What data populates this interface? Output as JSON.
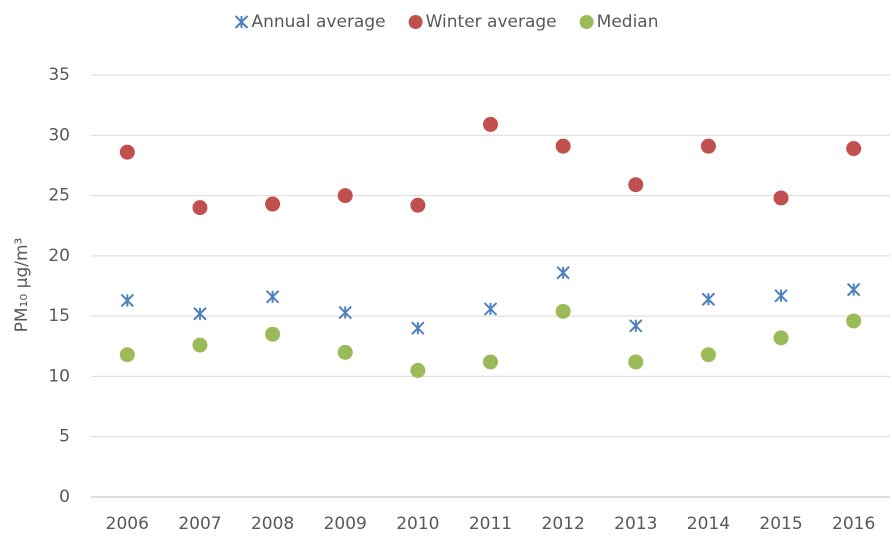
{
  "chart_data": {
    "type": "scatter",
    "y_label": "PM₁₀ µg/m³",
    "categories": [
      "2006",
      "2007",
      "2008",
      "2009",
      "2010",
      "2011",
      "2012",
      "2013",
      "2014",
      "2015",
      "2016"
    ],
    "series": [
      {
        "name": "Annual average",
        "color": "#4f81bd",
        "marker": "asterisk",
        "values": [
          16.3,
          15.2,
          16.6,
          15.3,
          14.0,
          15.6,
          18.6,
          14.2,
          16.4,
          16.7,
          17.2
        ]
      },
      {
        "name": "Winter average",
        "color": "#c0504d",
        "marker": "circle",
        "values": [
          28.6,
          24.0,
          24.3,
          25.0,
          24.2,
          30.9,
          29.1,
          25.9,
          29.1,
          24.8,
          28.9
        ]
      },
      {
        "name": "Median",
        "color": "#9bbb59",
        "marker": "circle",
        "values": [
          11.8,
          12.6,
          13.5,
          12.0,
          10.5,
          11.2,
          15.4,
          11.2,
          11.8,
          13.2,
          14.6
        ]
      }
    ],
    "ylim": [
      0,
      35
    ],
    "yticks": [
      0,
      5,
      10,
      15,
      20,
      25,
      30,
      35
    ],
    "grid": true,
    "legend": "top"
  }
}
